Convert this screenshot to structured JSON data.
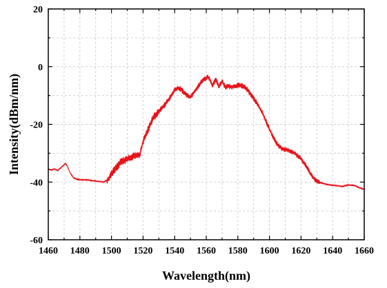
{
  "chart_data": {
    "type": "line",
    "xlabel": "Wavelength(nm)",
    "ylabel": "Intensity(dBm/nm)",
    "xlim": [
      1460,
      1660
    ],
    "ylim": [
      -60,
      20
    ],
    "x_ticks": [
      1460,
      1480,
      1500,
      1520,
      1540,
      1560,
      1580,
      1600,
      1620,
      1640,
      1660
    ],
    "y_ticks": [
      -60,
      -40,
      -20,
      0,
      20
    ],
    "grid": true,
    "series": [
      {
        "color": "#e8141c",
        "x": [
          1460,
          1462,
          1464,
          1466,
          1468,
          1470,
          1471,
          1472,
          1474,
          1476,
          1478,
          1480,
          1484,
          1488,
          1492,
          1495,
          1498,
          1500,
          1503,
          1506,
          1510,
          1514,
          1518,
          1520,
          1523,
          1526,
          1530,
          1534,
          1538,
          1540,
          1542,
          1544,
          1546,
          1548,
          1550,
          1552,
          1554,
          1556,
          1558,
          1560,
          1561,
          1562,
          1564,
          1566,
          1568,
          1570,
          1572,
          1574,
          1576,
          1578,
          1580,
          1582,
          1584,
          1586,
          1588,
          1590,
          1593,
          1596,
          1599,
          1602,
          1605,
          1608,
          1612,
          1616,
          1620,
          1624,
          1627,
          1630,
          1634,
          1638,
          1642,
          1646,
          1650,
          1654,
          1657,
          1660
        ],
        "y": [
          -35.5,
          -35.8,
          -35.5,
          -36,
          -35,
          -34,
          -33.5,
          -34.5,
          -37,
          -38.5,
          -39,
          -39.2,
          -39.2,
          -39.5,
          -39.8,
          -40,
          -39,
          -37,
          -35,
          -33,
          -32,
          -31,
          -30.5,
          -26,
          -22,
          -18,
          -15.5,
          -13,
          -10,
          -8,
          -7.5,
          -7.8,
          -9,
          -10,
          -10.5,
          -9,
          -7.5,
          -6,
          -4.5,
          -4,
          -3.5,
          -4.2,
          -6.5,
          -4.5,
          -6.8,
          -5,
          -7,
          -6.8,
          -7,
          -6.8,
          -6.5,
          -6.5,
          -7,
          -8,
          -9.5,
          -11,
          -13.5,
          -16.5,
          -20.5,
          -24,
          -27,
          -28.5,
          -29,
          -30,
          -32,
          -35,
          -38,
          -39.8,
          -40.5,
          -41,
          -41.2,
          -41.5,
          -41,
          -41.2,
          -42,
          -42.5
        ]
      }
    ]
  }
}
